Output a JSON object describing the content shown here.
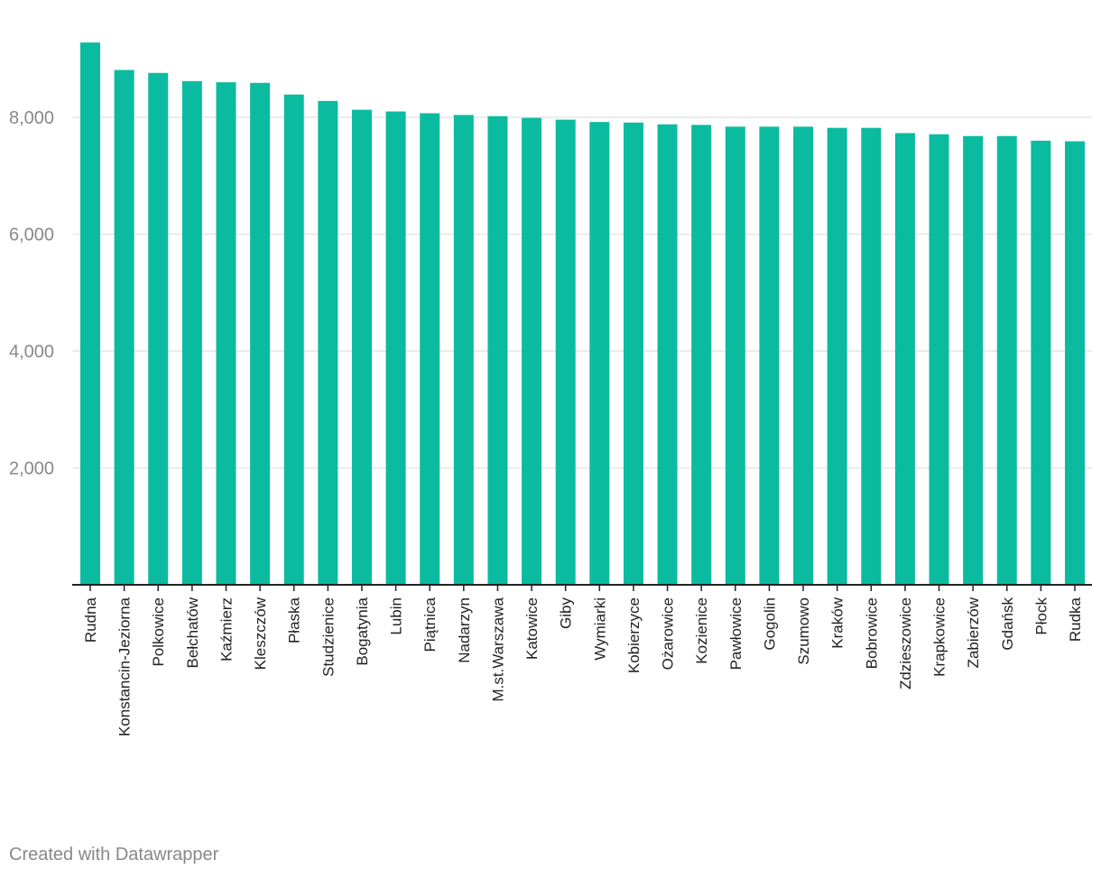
{
  "chart_data": {
    "type": "bar",
    "categories": [
      "Rudna",
      "Konstancin-Jeziorna",
      "Polkowice",
      "Bełchatów",
      "Kaźmierz",
      "Kleszczów",
      "Płaska",
      "Studzienice",
      "Bogatynia",
      "Lubin",
      "Piątnica",
      "Nadarzyn",
      "M.st.Warszawa",
      "Katowice",
      "Giby",
      "Wymiarki",
      "Kobierzyce",
      "Ożarowice",
      "Kozienice",
      "Pawłowice",
      "Gogolin",
      "Szumowo",
      "Kraków",
      "Bobrowice",
      "Zdzieszowice",
      "Krapkowice",
      "Zabierzów",
      "Gdańsk",
      "Płock",
      "Rudka"
    ],
    "values": [
      9280,
      8810,
      8760,
      8620,
      8600,
      8590,
      8390,
      8280,
      8130,
      8100,
      8070,
      8040,
      8020,
      7990,
      7960,
      7920,
      7910,
      7880,
      7870,
      7840,
      7840,
      7840,
      7820,
      7820,
      7730,
      7710,
      7680,
      7680,
      7600,
      7590
    ],
    "ylim": [
      0,
      9500
    ],
    "yticks": [
      2000,
      4000,
      6000,
      8000
    ],
    "ytick_labels": [
      "2,000",
      "4,000",
      "6,000",
      "8,000"
    ],
    "grid": true,
    "bar_color": "#0bbba0",
    "grid_color": "#e6e6e6",
    "axis_color": "#222222",
    "title": "",
    "xlabel": "",
    "ylabel": ""
  },
  "footer": {
    "credit": "Created with Datawrapper"
  }
}
